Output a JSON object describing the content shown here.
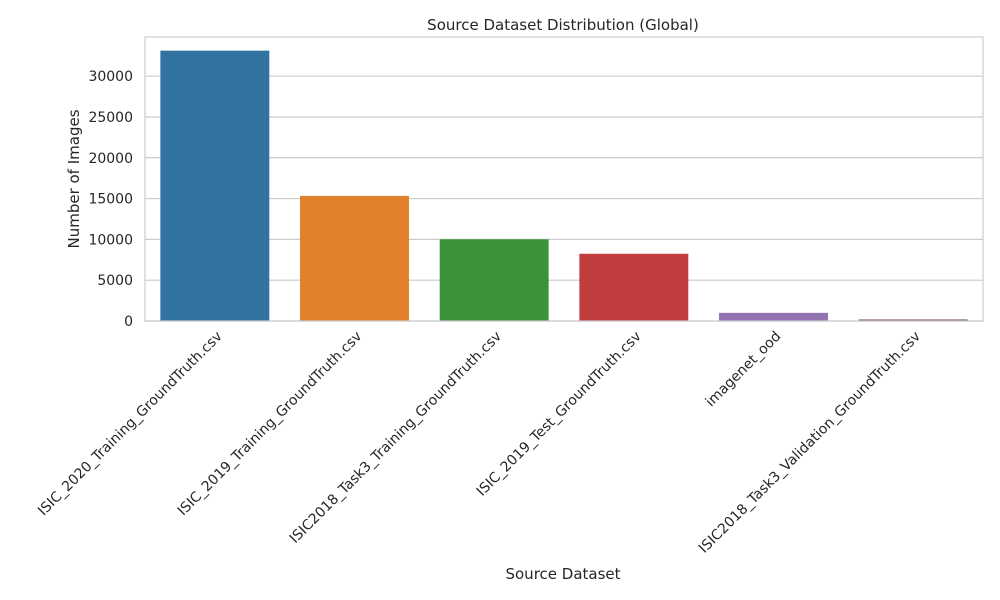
{
  "chart_data": {
    "type": "bar",
    "title": "Source Dataset Distribution (Global)",
    "xlabel": "Source Dataset",
    "ylabel": "Number of Images",
    "categories": [
      "ISIC_2020_Training_GroundTruth.csv",
      "ISIC_2019_Training_GroundTruth.csv",
      "ISIC2018_Task3_Training_GroundTruth.csv",
      "ISIC_2019_Test_GroundTruth.csv",
      "imagenet_ood",
      "ISIC2018_Task3_Validation_GroundTruth.csv"
    ],
    "values": [
      33126,
      15331,
      10015,
      8238,
      1000,
      193
    ],
    "colors": [
      "#3274a1",
      "#e1812c",
      "#3a923a",
      "#c03d3e",
      "#9372b2",
      "#845b53"
    ],
    "ylim": [
      0,
      34800
    ],
    "yticks": [
      0,
      5000,
      10000,
      15000,
      20000,
      25000,
      30000
    ],
    "grid": true
  }
}
